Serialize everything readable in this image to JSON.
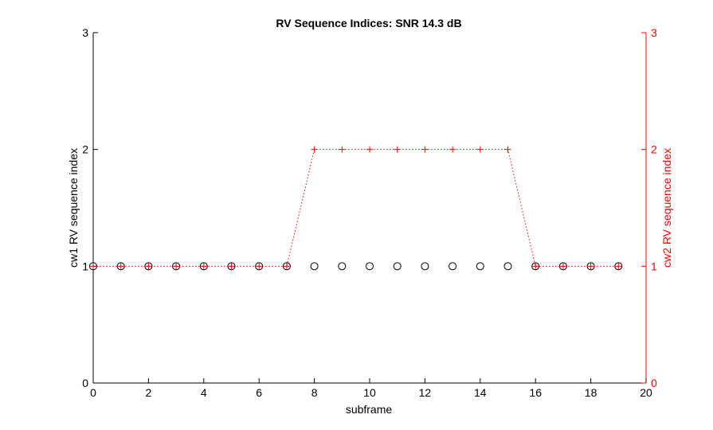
{
  "chart_data": {
    "type": "line",
    "title": "RV Sequence Indices: SNR 14.3 dB",
    "xlabel": "subframe",
    "ylabel_left": "cw1  RV sequence index",
    "ylabel_right": "cw2  RV sequence index",
    "xlim": [
      0,
      20
    ],
    "ylim_left": [
      0,
      3
    ],
    "ylim_right": [
      0,
      3
    ],
    "xticks": [
      "0",
      "2",
      "4",
      "6",
      "8",
      "10",
      "12",
      "14",
      "16",
      "18",
      "20"
    ],
    "yticks_left": [
      "0",
      "1",
      "2",
      "3"
    ],
    "yticks_right": [
      "0",
      "1",
      "2",
      "3"
    ],
    "grid": false,
    "legend": "none",
    "x": [
      0,
      1,
      2,
      3,
      4,
      5,
      6,
      7,
      8,
      9,
      10,
      11,
      12,
      13,
      14,
      15,
      16,
      17,
      18,
      19
    ],
    "series": [
      {
        "axis": "left",
        "marker": "circle",
        "line": "none",
        "color": "#000000",
        "values": [
          1,
          1,
          1,
          1,
          1,
          1,
          1,
          1,
          1,
          1,
          1,
          1,
          1,
          1,
          1,
          1,
          1,
          1,
          1,
          1
        ]
      },
      {
        "axis": "right",
        "marker": "plus",
        "line": "dotted",
        "color": "#ff0000",
        "values": [
          1,
          1,
          1,
          1,
          1,
          1,
          1,
          1,
          2,
          2,
          2,
          2,
          2,
          2,
          2,
          2,
          1,
          1,
          1,
          1
        ]
      }
    ]
  }
}
